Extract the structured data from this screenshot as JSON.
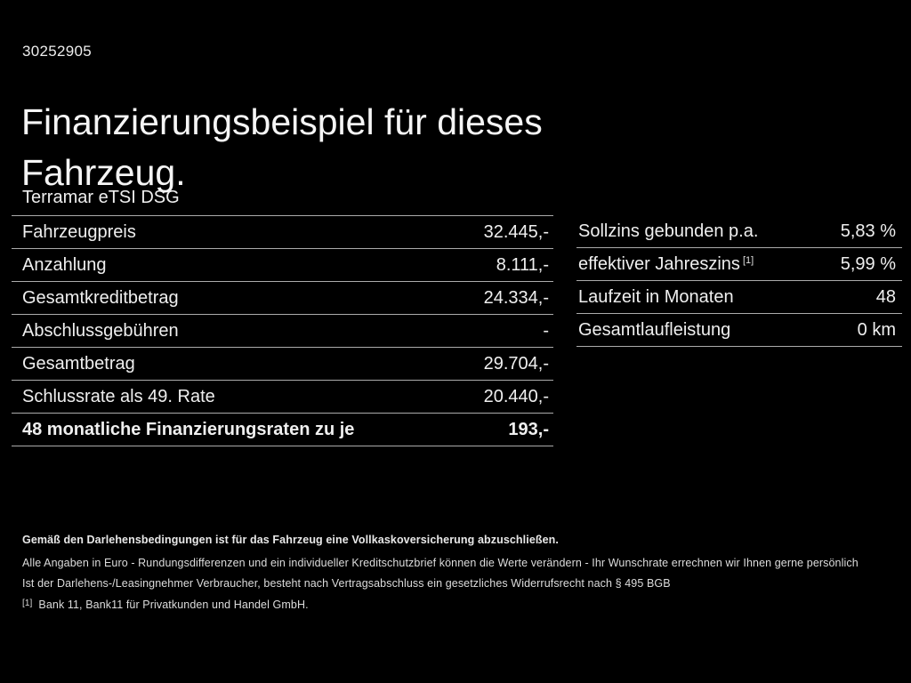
{
  "page": {
    "vehicle_id": "30252905",
    "title": "Finanzierungsbeispiel für dieses Fahrzeug.",
    "model": "Terramar eTSI DSG",
    "background_color": "#000000",
    "text_color": "#f2f2f2",
    "divider_color": "#ababab"
  },
  "left_table": {
    "rows": [
      {
        "label": "Fahrzeugpreis",
        "value": "32.445,-"
      },
      {
        "label": "Anzahlung",
        "value": "8.111,-"
      },
      {
        "label": "Gesamtkreditbetrag",
        "value": "24.334,-"
      },
      {
        "label": "Abschlussgebühren",
        "value": "-"
      },
      {
        "label": "Gesamtbetrag",
        "value": "29.704,-"
      },
      {
        "label": "Schlussrate als 49. Rate",
        "value": "20.440,-"
      },
      {
        "label": "48 monatliche Finanzierungsraten zu je",
        "value": "193,-"
      }
    ]
  },
  "right_table": {
    "rows": [
      {
        "label": "Sollzins gebunden p.a.",
        "value": "5,83 %"
      },
      {
        "label": "effektiver Jahreszins",
        "sup": "[1]",
        "value": "5,99 %"
      },
      {
        "label": "Laufzeit in Monaten",
        "value": "48"
      },
      {
        "label": "Gesamtlaufleistung",
        "value": "0 km"
      }
    ]
  },
  "footnotes": {
    "insurance_note": "Gemäß den Darlehensbedingungen ist für das Fahrzeug eine Vollkaskoversicherung abzuschließen.",
    "euro_note": "Alle Angaben in Euro - Rundungsdifferenzen und ein individueller Kreditschutzbrief können die Werte verändern - Ihr Wunschrate errechnen wir Ihnen gerne persönlich",
    "withdrawal_note": "Ist der Darlehens-/Leasingnehmer Verbraucher, besteht nach Vertragsabschluss ein gesetzliches Widerrufsrecht nach § 495 BGB",
    "bank_ref_marker": "[1]",
    "bank_note": "Bank 11, Bank11 für Privatkunden und Handel GmbH."
  }
}
